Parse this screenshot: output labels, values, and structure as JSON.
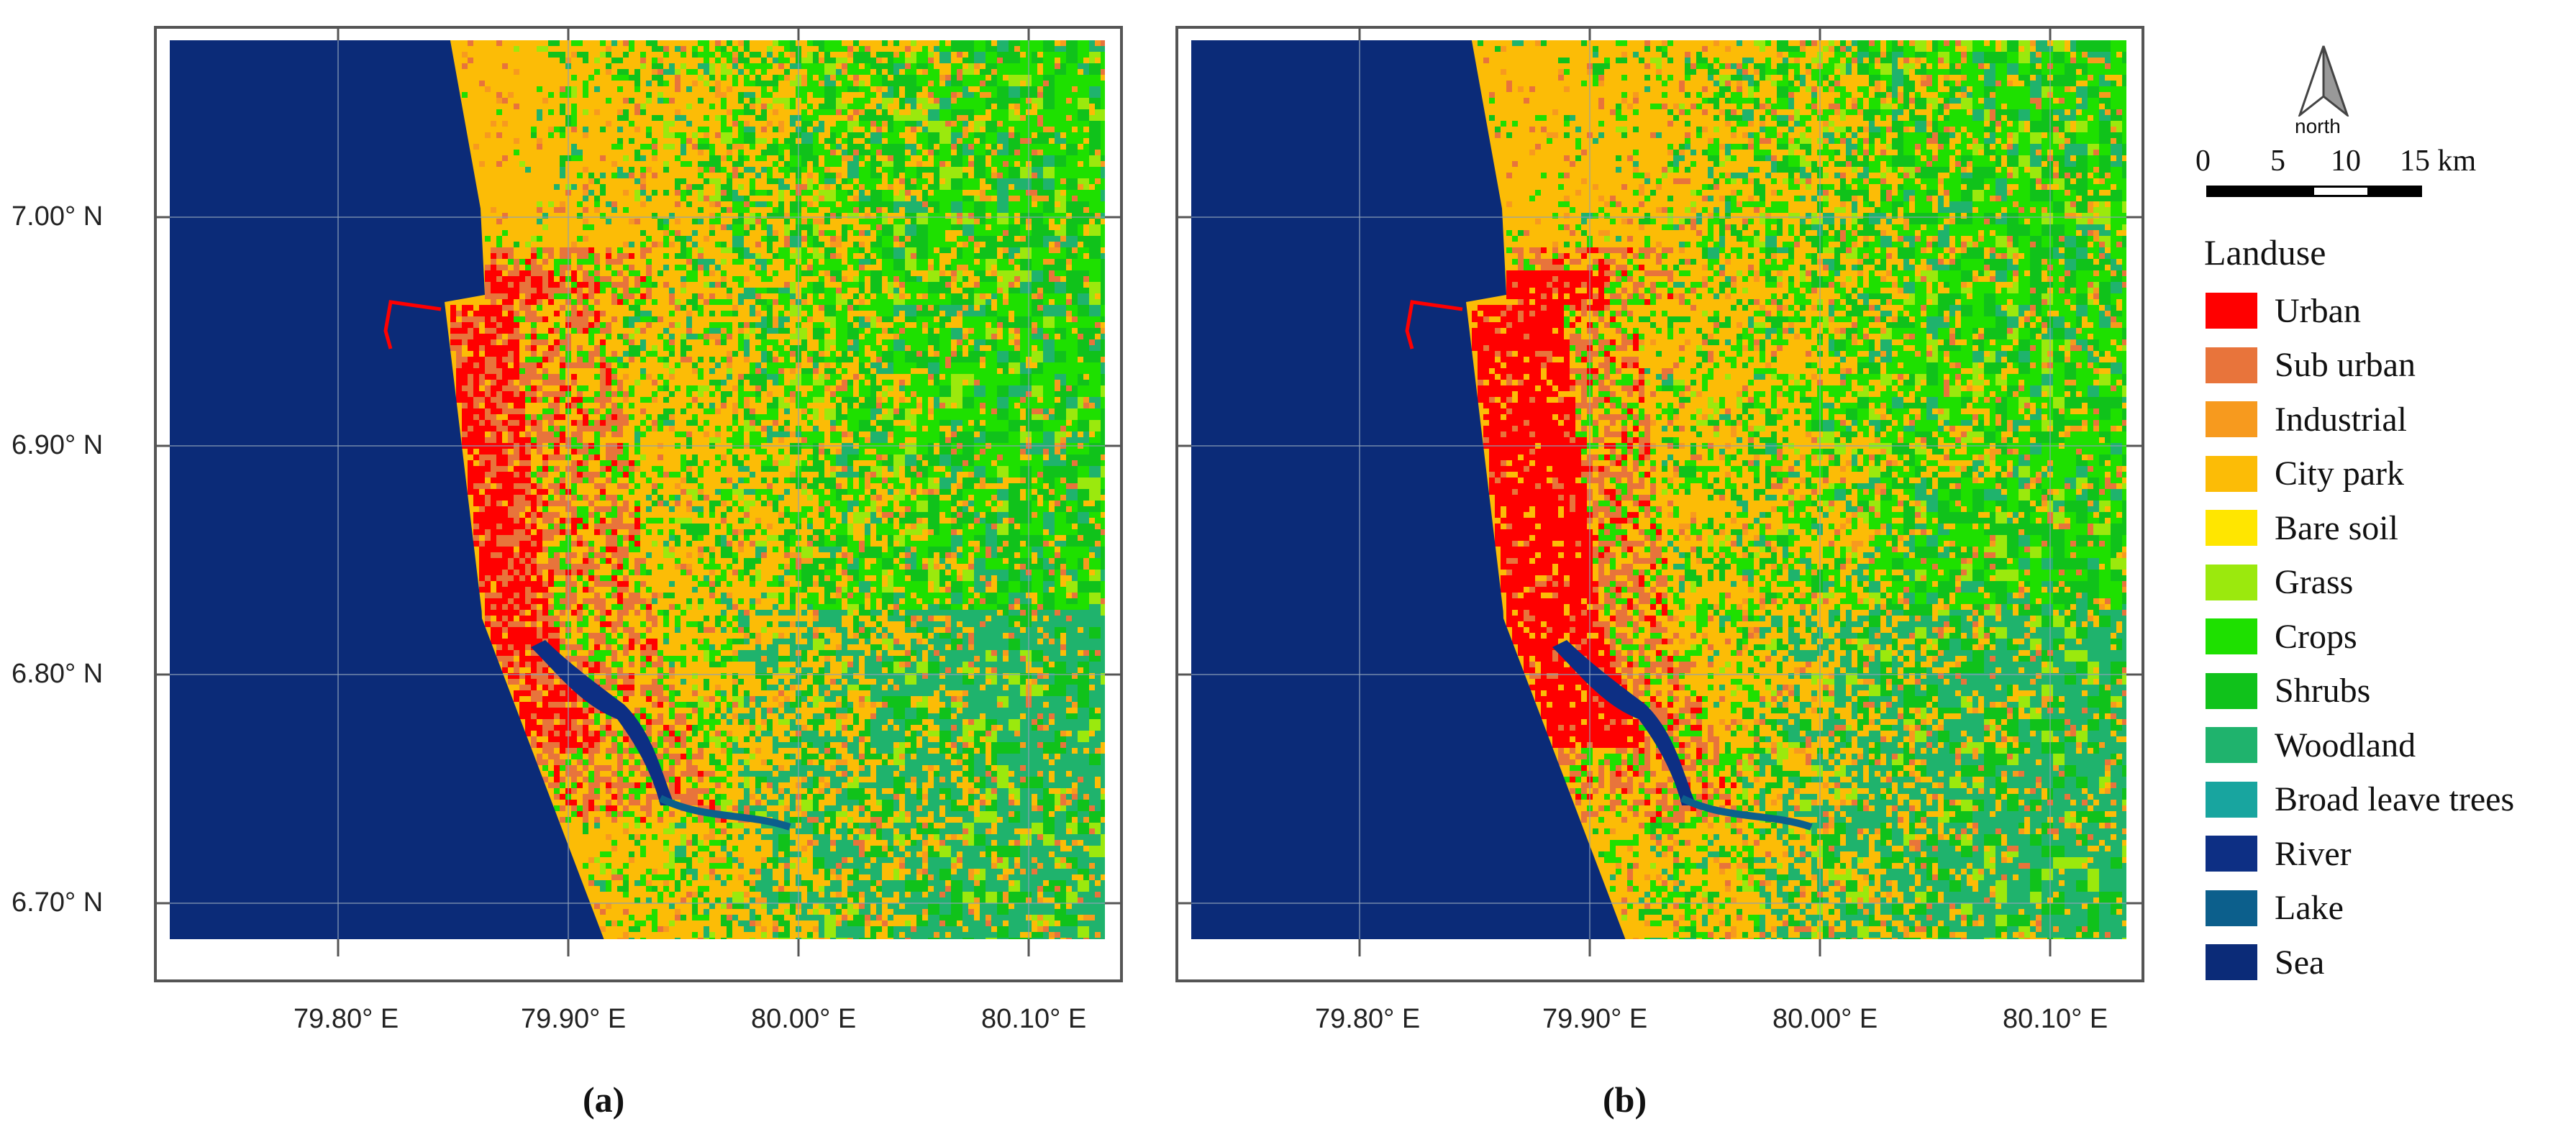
{
  "panels": [
    {
      "id": "a",
      "caption": "(a)"
    },
    {
      "id": "b",
      "caption": "(b)"
    }
  ],
  "axes": {
    "y_ticks": [
      "7.00° N",
      "6.90° N",
      "6.80° N",
      "6.70° N"
    ],
    "x_ticks": [
      "79.80° E",
      "79.90° E",
      "80.00° E",
      "80.10° E"
    ]
  },
  "north_arrow": {
    "label": "north",
    "icon": "north-arrow-icon"
  },
  "scale_bar": {
    "labels": [
      "0",
      "5",
      "10",
      "15 km"
    ]
  },
  "legend": {
    "title": "Landuse",
    "items": [
      {
        "label": "Urban",
        "color": "#ff0000"
      },
      {
        "label": "Sub urban",
        "color": "#e8743b"
      },
      {
        "label": "Industrial",
        "color": "#f79a1e"
      },
      {
        "label": "City park",
        "color": "#fcbc06"
      },
      {
        "label": "Bare soil",
        "color": "#ffe600"
      },
      {
        "label": "Grass",
        "color": "#9be90d"
      },
      {
        "label": "Crops",
        "color": "#1ee000"
      },
      {
        "label": "Shrubs",
        "color": "#10c21b"
      },
      {
        "label": "Woodland",
        "color": "#1fb36d"
      },
      {
        "label": "Broad leave trees",
        "color": "#18a59f"
      },
      {
        "label": "River",
        "color": "#0d2f84"
      },
      {
        "label": "Lake",
        "color": "#0c5f8c"
      },
      {
        "label": "Sea",
        "color": "#0b2b78"
      }
    ]
  }
}
